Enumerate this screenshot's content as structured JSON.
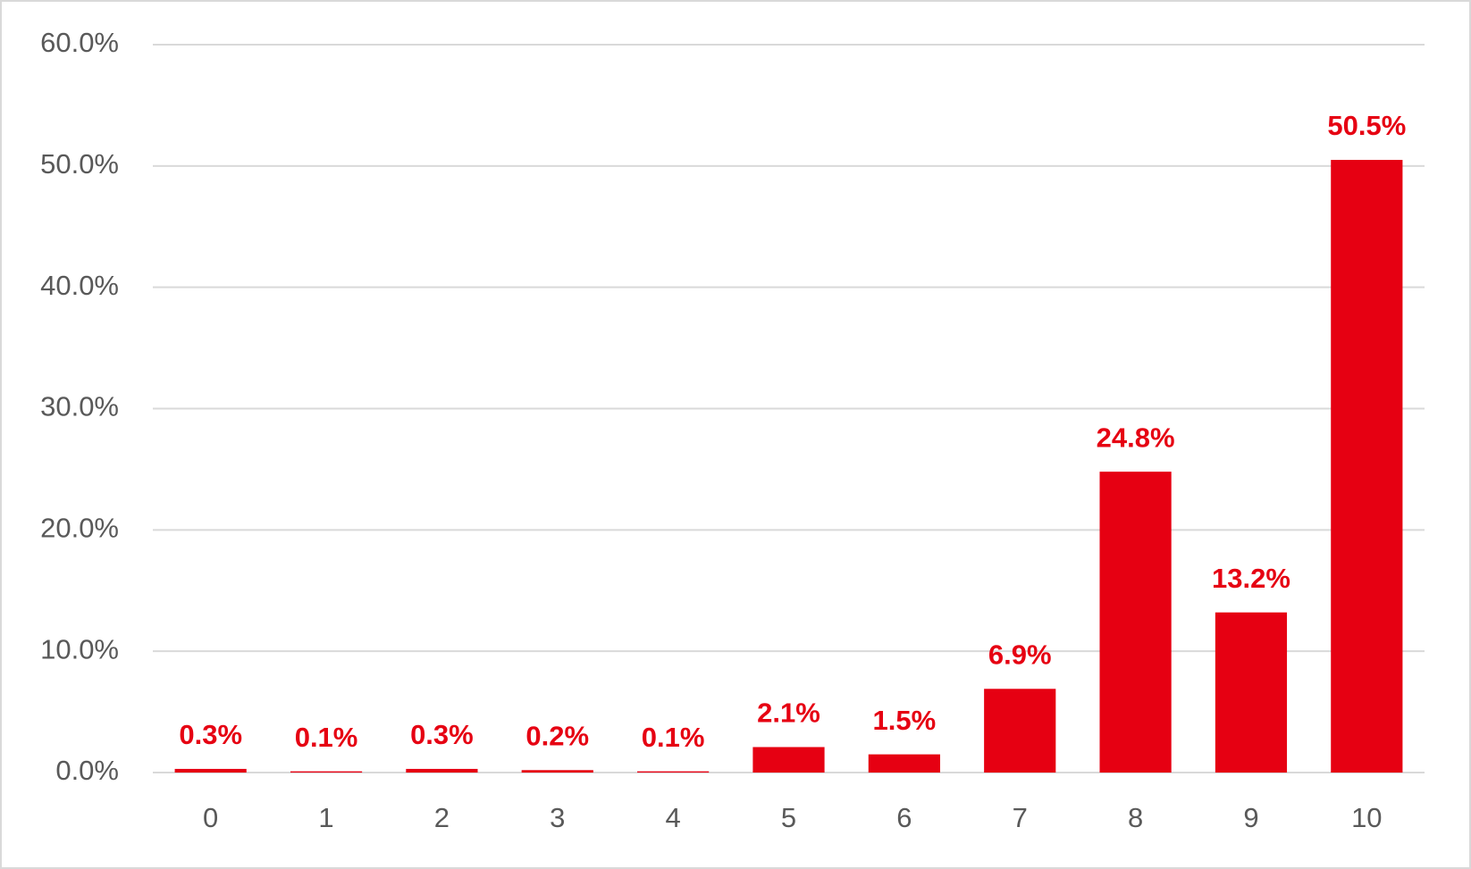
{
  "chart_data": {
    "type": "bar",
    "categories": [
      "0",
      "1",
      "2",
      "3",
      "4",
      "5",
      "6",
      "7",
      "8",
      "9",
      "10"
    ],
    "values": [
      0.3,
      0.1,
      0.3,
      0.2,
      0.1,
      2.1,
      1.5,
      6.9,
      24.8,
      13.2,
      50.5
    ],
    "value_labels": [
      "0.3%",
      "0.1%",
      "0.3%",
      "0.2%",
      "0.1%",
      "2.1%",
      "1.5%",
      "6.9%",
      "24.8%",
      "13.2%",
      "50.5%"
    ],
    "color": "#e60012",
    "ylim": [
      0,
      60
    ],
    "yticks": [
      {
        "value": 0,
        "label": "0.0%"
      },
      {
        "value": 10,
        "label": "10.0%"
      },
      {
        "value": 20,
        "label": "20.0%"
      },
      {
        "value": 30,
        "label": "30.0%"
      },
      {
        "value": 40,
        "label": "40.0%"
      },
      {
        "value": 50,
        "label": "50.0%"
      },
      {
        "value": 60,
        "label": "60.0%"
      }
    ],
    "grid": true
  }
}
